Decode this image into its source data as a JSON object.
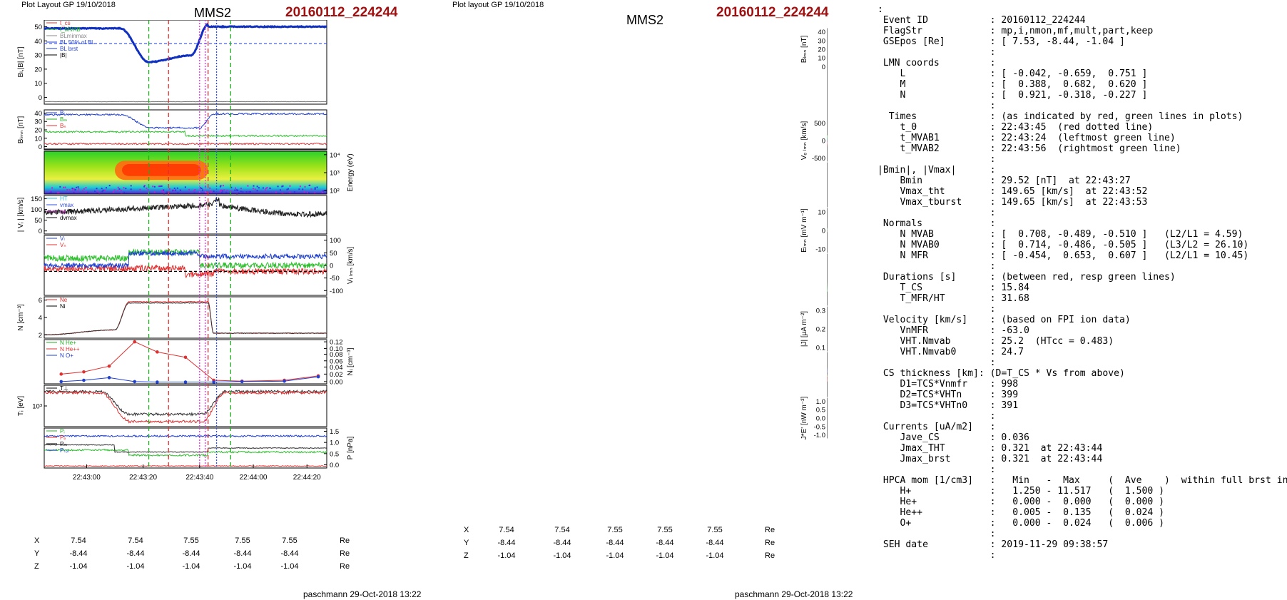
{
  "left_plot": {
    "header": "Plot Layout GP 19/10/2018",
    "station": "MMS2",
    "event": "20160112_224244",
    "footer": "paschmann 29-Oct-2018 13:22",
    "time_ticks": [
      "22:43:00",
      "22:43:20",
      "22:43:40",
      "22:44:00",
      "22:44:20"
    ],
    "coords": {
      "X": [
        "7.54",
        "7.54",
        "7.55",
        "7.55",
        "7.55"
      ],
      "Y": [
        "-8.44",
        "-8.44",
        "-8.44",
        "-8.44",
        "-8.44"
      ],
      "Z": [
        "-1.04",
        "-1.04",
        "-1.04",
        "-1.04",
        "-1.04"
      ],
      "unit": "Re"
    },
    "panels": [
      {
        "ylabel": "Bₗ,|B| [nT]",
        "ticks": [
          "50",
          "40",
          "30",
          "20",
          "10",
          "0"
        ],
        "legend": [
          "t_cs",
          "t_MVAB",
          "BLminmax",
          "BL 50% of BL",
          "BL brst",
          "|B|"
        ]
      },
      {
        "ylabel": "Bₗₘₙ [nT]",
        "ticks": [
          "40",
          "30",
          "20",
          "10",
          "0"
        ],
        "legend": [
          "Bₗ",
          "Bₘ",
          "Bₙ"
        ]
      },
      {
        "ylabel": "Energy (eV)",
        "ticks": [
          "10⁴",
          "10³",
          "10²"
        ],
        "legend": []
      },
      {
        "ylabel": "| Vᵢ | [km/s]",
        "ticks": [
          "150",
          "100",
          "50",
          "0"
        ],
        "legend": [
          "HT",
          "vmax",
          "ce",
          "dvmax"
        ]
      },
      {
        "ylabel": "Vᵢ ₗₘₙ [km/s]",
        "ticks": [
          "100",
          "50",
          "0",
          "-50",
          "-100"
        ],
        "legend": [
          "Vₗ",
          "Vₙ"
        ]
      },
      {
        "ylabel": "N [cm⁻³]",
        "ticks": [
          "6",
          "4",
          "2"
        ],
        "legend": [
          "Ne",
          "Ni"
        ]
      },
      {
        "ylabel": "Nᵢ [cm⁻³]",
        "ticks": [
          "0.12",
          "0.10",
          "0.08",
          "0.06",
          "0.04",
          "0.02",
          "0.00"
        ],
        "legend": [
          "N He+",
          "N He++",
          "N O+"
        ]
      },
      {
        "ylabel": "Tᵢ [eV]",
        "ticks": [
          "10³"
        ],
        "legend": [
          "T⊥"
        ]
      },
      {
        "ylabel": "P [nPa]",
        "ticks": [
          "1.5",
          "1.0",
          "0.5",
          "0.0"
        ],
        "legend": [
          "Pᵢ",
          "Pₑ",
          "Pₘ",
          "Pₜₒₜ"
        ]
      }
    ]
  },
  "mid_plot": {
    "header": "Plot layout GP 19/10/2018",
    "station": "MMS2",
    "event": "20160112_224244",
    "footer": "paschmann 29-Oct-2018 13:22",
    "time_ticks": [
      "22:43:00",
      "22:43:20",
      "22:43:40",
      "22:44:00",
      "22:44:20"
    ],
    "coords": {
      "X": [
        "7.54",
        "7.54",
        "7.55",
        "7.55",
        "7.55"
      ],
      "Y": [
        "-8.44",
        "-8.44",
        "-8.44",
        "-8.44",
        "-8.44"
      ],
      "Z": [
        "-1.04",
        "-1.04",
        "-1.04",
        "-1.04",
        "-1.04"
      ],
      "unit": "Re"
    },
    "panels": [
      {
        "ylabel": "Bₗₘₙ [nT]",
        "ticks": [
          "40",
          "30",
          "20",
          "10",
          "0"
        ],
        "legend": [
          "Bₗ",
          "Bₘ",
          "Bₙ"
        ]
      },
      {
        "ylabel": "Energy (eV)",
        "ticks": [
          "10⁴",
          "10³",
          "10²",
          "10¹"
        ],
        "legend": []
      },
      {
        "ylabel": "Vₑ ₗₘₙ [km/s]",
        "ticks": [
          "500",
          "0",
          "-500"
        ],
        "legend": [
          "Vₗ"
        ]
      },
      {
        "ylabel": "Tₑ [eV]",
        "ticks": [
          "10²"
        ],
        "legend": [
          "Tᵢ"
        ]
      },
      {
        "ylabel": "Eₗₘₙ [mV m⁻¹]",
        "ticks": [
          "10",
          "0",
          "-10"
        ],
        "legend": [
          "Eₗ",
          "Eₘ",
          "Eₙ"
        ]
      },
      {
        "ylabel": "Eₘ [mV m⁻²]",
        "ticks": [
          "10",
          "0",
          "-10"
        ],
        "legend": [
          "(VexB)"
        ]
      },
      {
        "ylabel": "|J| [μA m⁻²]",
        "ticks": [
          "0.3",
          "0.2",
          "0.1"
        ],
        "legend": [
          "|J|"
        ]
      },
      {
        "ylabel": "J [μA m⁻²]",
        "ticks": [
          "0.2",
          "0.1",
          "0.0",
          "-0.1",
          "-0.2"
        ],
        "legend": [
          "J maxJ",
          "Jₗ"
        ]
      },
      {
        "ylabel": "J*E' [nW m⁻³]",
        "ticks": [
          "1.0",
          "0.5",
          "0.0",
          "-0.5",
          "-1.0"
        ],
        "legend": [
          "J*E'"
        ]
      }
    ]
  },
  "summary": {
    "lines": [
      ":",
      " Event ID           : 20160112_224244",
      " FlagStr            : mp,i,nmon,mf,mult,part,keep",
      " GSEpos [Re]        : [ 7.53, -8.44, -1.04 ]",
      "                    :",
      " LMN coords         :",
      "    L               : [ -0.042, -0.659,  0.751 ]",
      "    M               : [  0.388,  0.682,  0.620 ]",
      "    N               : [  0.921, -0.318, -0.227 ]",
      "                    :",
      "  Times             : (as indicated by red, green lines in plots)",
      "    t_0             : 22:43:45  (red dotted line)",
      "    t_MVAB1         : 22:43:24  (leftmost green line)",
      "    t_MVAB2         : 22:43:56  (rightmost green line)",
      "                    :",
      "|Bmin|, |Vmax|      :",
      "    Bmin            : 29.52 [nT]  at 22:43:27",
      "    Vmax_tht        : 149.65 [km/s]  at 22:43:52",
      "    Vmax_tburst     : 149.65 [km/s]  at 22:43:53",
      "                    :",
      " Normals            :",
      "    N MVAB          : [  0.708, -0.489, -0.510 ]   (L2/L1 = 4.59)",
      "    N MVAB0         : [  0.714, -0.486, -0.505 ]   (L3/L2 = 26.10)",
      "    N MFR           : [ -0.454,  0.653,  0.607 ]   (L2/L1 = 10.45)",
      "                    :",
      " Durations [s]      : (between red, resp green lines)",
      "    T_CS            : 15.84",
      "    T_MFR/HT        : 31.68",
      "                    :",
      " Velocity [km/s]    : (based on FPI ion data)",
      "    VnMFR           : -63.0",
      "    VHT.Nmvab       : 25.2  (HTcc = 0.483)",
      "    VHT.Nmvab0      : 24.7",
      "                    :",
      " CS thickness [km]: (D=T_CS * Vs from above)",
      "    D1=TCS*Vnmfr    : 998",
      "    D2=TCS*VHTn     : 399",
      "    D3=TCS*VHTn0    : 391",
      "                    :",
      " Currents [uA/m2]   :",
      "    Jave_CS         : 0.036",
      "    Jmax_THT        : 0.321  at 22:43:44",
      "    Jmax_brst       : 0.321  at 22:43:44",
      "                    :",
      " HPCA mom [1/cm3]   :   Min   -  Max     (  Ave    )  within full brst int",
      "    H+              :   1.250 - 11.517   (  1.500 )",
      "    He+             :   0.000 -  0.000   (  0.000 )",
      "    He++            :   0.005 -  0.135   (  0.024 )",
      "    O+              :   0.000 -  0.024   (  0.006 )",
      "                    :",
      " SEH date           : 2019-11-29 09:38:57",
      "                    :"
    ]
  },
  "chart_data": [
    {
      "type": "line",
      "title": "MMS2 20160112_224244",
      "x_ticks": [
        "22:43:00",
        "22:43:20",
        "22:43:40",
        "22:44:00",
        "22:44:20"
      ],
      "series": [
        {
          "name": "|B|",
          "x": [
            "22:42:44",
            "22:43:00",
            "22:43:20",
            "22:43:27",
            "22:43:40",
            "22:43:46",
            "22:44:00",
            "22:44:20",
            "22:44:44"
          ],
          "values": [
            45,
            45,
            34,
            29.5,
            31,
            46,
            47,
            46,
            46
          ]
        }
      ],
      "ylim": [
        0,
        50
      ],
      "ylabel": "Bₗ,|B| [nT]"
    },
    {
      "type": "line",
      "x_ticks": [
        "22:43:00",
        "22:43:20",
        "22:43:40",
        "22:44:00",
        "22:44:20"
      ],
      "series": [
        {
          "name": "Ne",
          "x": [
            "22:42:44",
            "22:43:00",
            "22:43:10",
            "22:43:20",
            "22:43:40",
            "22:43:46",
            "22:44:00",
            "22:44:44"
          ],
          "values": [
            1.0,
            1.2,
            3.5,
            7.0,
            7.0,
            1.5,
            1.1,
            1.0
          ]
        }
      ],
      "ylabel": "N [cm⁻³]"
    },
    {
      "type": "line",
      "x_ticks": [
        "22:43:00",
        "22:43:20",
        "22:43:40",
        "22:44:00",
        "22:44:20"
      ],
      "series": [
        {
          "name": "N He++",
          "x": [
            "22:42:48",
            "22:43:00",
            "22:43:20",
            "22:43:30",
            "22:43:40",
            "22:43:50",
            "22:44:00",
            "22:44:20",
            "22:44:40"
          ],
          "values": [
            0.024,
            0.028,
            0.118,
            0.088,
            0.072,
            0.006,
            0.004,
            0.005,
            0.012
          ]
        },
        {
          "name": "N O+",
          "x": [
            "22:42:48",
            "22:43:00",
            "22:43:10",
            "22:43:20",
            "22:43:40",
            "22:44:00",
            "22:44:20",
            "22:44:40"
          ],
          "values": [
            0.002,
            0.006,
            0.012,
            0.003,
            0.002,
            0.002,
            0.004,
            0.018
          ]
        }
      ],
      "ylim": [
        0,
        0.12
      ],
      "ylabel": "Nᵢ [cm⁻³]"
    }
  ]
}
